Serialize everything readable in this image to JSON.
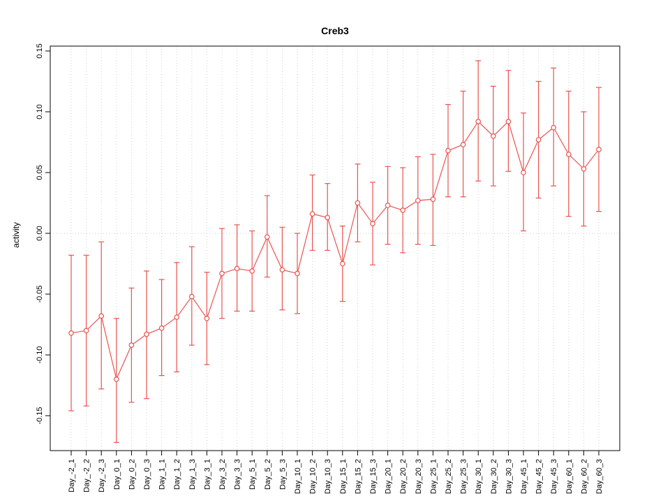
{
  "chart_data": {
    "type": "line",
    "title": "Creb3",
    "xlabel": "",
    "ylabel": "activity",
    "ylim": [
      -0.15,
      0.15
    ],
    "ytick_labels": [
      "-0.15",
      "-0.10",
      "-0.05",
      "0.00",
      "0.05",
      "0.10",
      "0.15"
    ],
    "ytick_values": [
      -0.15,
      -0.1,
      -0.05,
      0.0,
      0.05,
      0.1,
      0.15
    ],
    "grid": "vertical-dotted-per-category-plus-dotted-zero-line",
    "legend": "none",
    "point_style": "open-circle",
    "colors": {
      "series": "#e9534f",
      "grid": "#cfcfcf",
      "axis": "#000000",
      "background": "#ffffff"
    },
    "categories": [
      "Day_-2_1",
      "Day_-2_2",
      "Day_-2_3",
      "Day_0_1",
      "Day_0_2",
      "Day_0_3",
      "Day_1_1",
      "Day_1_2",
      "Day_1_3",
      "Day_3_1",
      "Day_3_2",
      "Day_3_3",
      "Day_5_1",
      "Day_5_2",
      "Day_5_3",
      "Day_10_1",
      "Day_10_2",
      "Day_10_3",
      "Day_15_1",
      "Day_15_2",
      "Day_15_3",
      "Day_20_1",
      "Day_20_2",
      "Day_20_3",
      "Day_25_1",
      "Day_25_2",
      "Day_25_3",
      "Day_30_1",
      "Day_30_2",
      "Day_30_3",
      "Day_45_1",
      "Day_45_2",
      "Day_45_3",
      "Day_60_1",
      "Day_60_2",
      "Day_60_3"
    ],
    "series": [
      {
        "name": "activity",
        "values": [
          -0.082,
          -0.08,
          -0.068,
          -0.12,
          -0.092,
          -0.083,
          -0.078,
          -0.069,
          -0.052,
          -0.07,
          -0.033,
          -0.029,
          -0.031,
          -0.003,
          -0.03,
          -0.033,
          0.016,
          0.013,
          -0.025,
          0.025,
          0.008,
          0.023,
          0.019,
          0.027,
          0.028,
          0.068,
          0.073,
          0.092,
          0.08,
          0.092,
          0.05,
          0.077,
          0.087,
          0.065,
          0.053,
          0.069
        ],
        "upper": [
          -0.018,
          -0.018,
          -0.007,
          -0.07,
          -0.045,
          -0.031,
          -0.038,
          -0.024,
          -0.011,
          -0.032,
          0.004,
          0.007,
          0.002,
          0.031,
          0.005,
          0.0,
          0.048,
          0.041,
          0.006,
          0.057,
          0.042,
          0.055,
          0.054,
          0.063,
          0.065,
          0.106,
          0.117,
          0.142,
          0.121,
          0.134,
          0.099,
          0.125,
          0.136,
          0.117,
          0.1,
          0.12
        ],
        "lower": [
          -0.146,
          -0.142,
          -0.128,
          -0.172,
          -0.139,
          -0.136,
          -0.117,
          -0.114,
          -0.092,
          -0.108,
          -0.07,
          -0.064,
          -0.064,
          -0.036,
          -0.063,
          -0.066,
          -0.014,
          -0.014,
          -0.056,
          -0.007,
          -0.026,
          -0.009,
          -0.016,
          -0.009,
          -0.01,
          0.03,
          0.03,
          0.043,
          0.039,
          0.051,
          0.002,
          0.029,
          0.039,
          0.014,
          0.006,
          0.018
        ]
      }
    ]
  }
}
